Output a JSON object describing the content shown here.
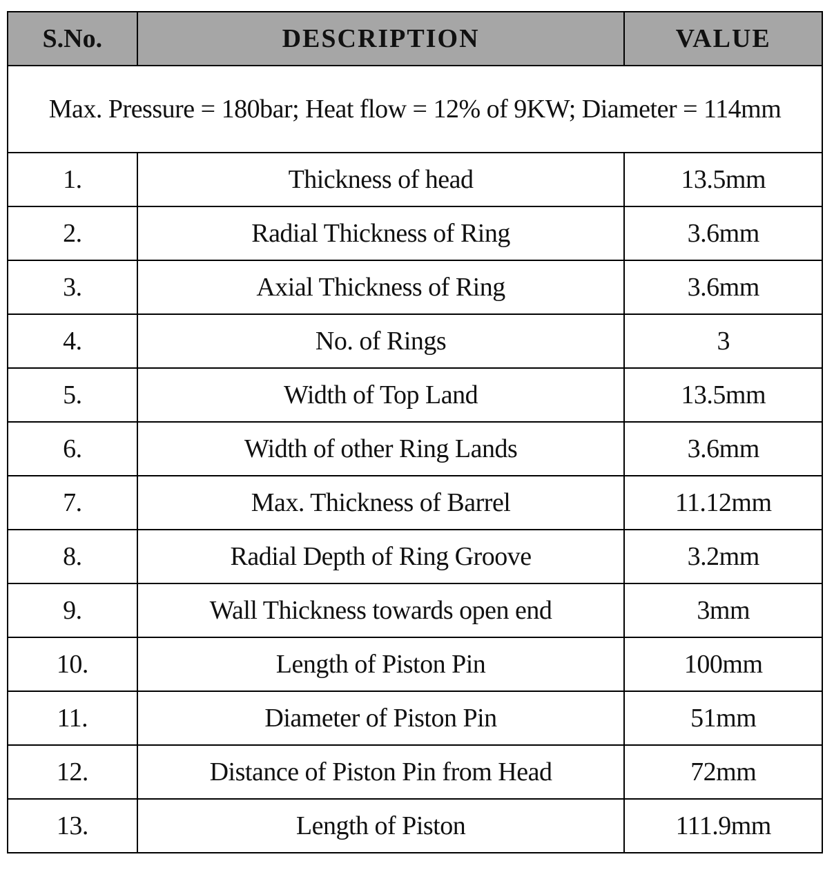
{
  "header": {
    "sno": "S.No.",
    "description": "DESCRIPTION",
    "value": "VALUE"
  },
  "conditions": "Max. Pressure = 180bar; Heat flow = 12% of 9KW; Diameter = 114mm",
  "rows": [
    {
      "sno": "1.",
      "description": "Thickness of head",
      "value": "13.5mm"
    },
    {
      "sno": "2.",
      "description": "Radial Thickness of Ring",
      "value": "3.6mm"
    },
    {
      "sno": "3.",
      "description": "Axial Thickness of Ring",
      "value": "3.6mm"
    },
    {
      "sno": "4.",
      "description": "No. of Rings",
      "value": "3"
    },
    {
      "sno": "5.",
      "description": "Width of Top Land",
      "value": "13.5mm"
    },
    {
      "sno": "6.",
      "description": "Width of other Ring Lands",
      "value": "3.6mm"
    },
    {
      "sno": "7.",
      "description": "Max. Thickness of Barrel",
      "value": "11.12mm"
    },
    {
      "sno": "8.",
      "description": "Radial Depth of Ring Groove",
      "value": "3.2mm"
    },
    {
      "sno": "9.",
      "description": "Wall Thickness towards open end",
      "value": "3mm"
    },
    {
      "sno": "10.",
      "description": "Length of Piston Pin",
      "value": "100mm"
    },
    {
      "sno": "11.",
      "description": "Diameter of Piston Pin",
      "value": "51mm"
    },
    {
      "sno": "12.",
      "description": "Distance of Piston Pin from Head",
      "value": "72mm"
    },
    {
      "sno": "13.",
      "description": "Length of Piston",
      "value": "111.9mm"
    }
  ],
  "colors": {
    "header_bg": "#a6a6a6",
    "border": "#000000"
  }
}
